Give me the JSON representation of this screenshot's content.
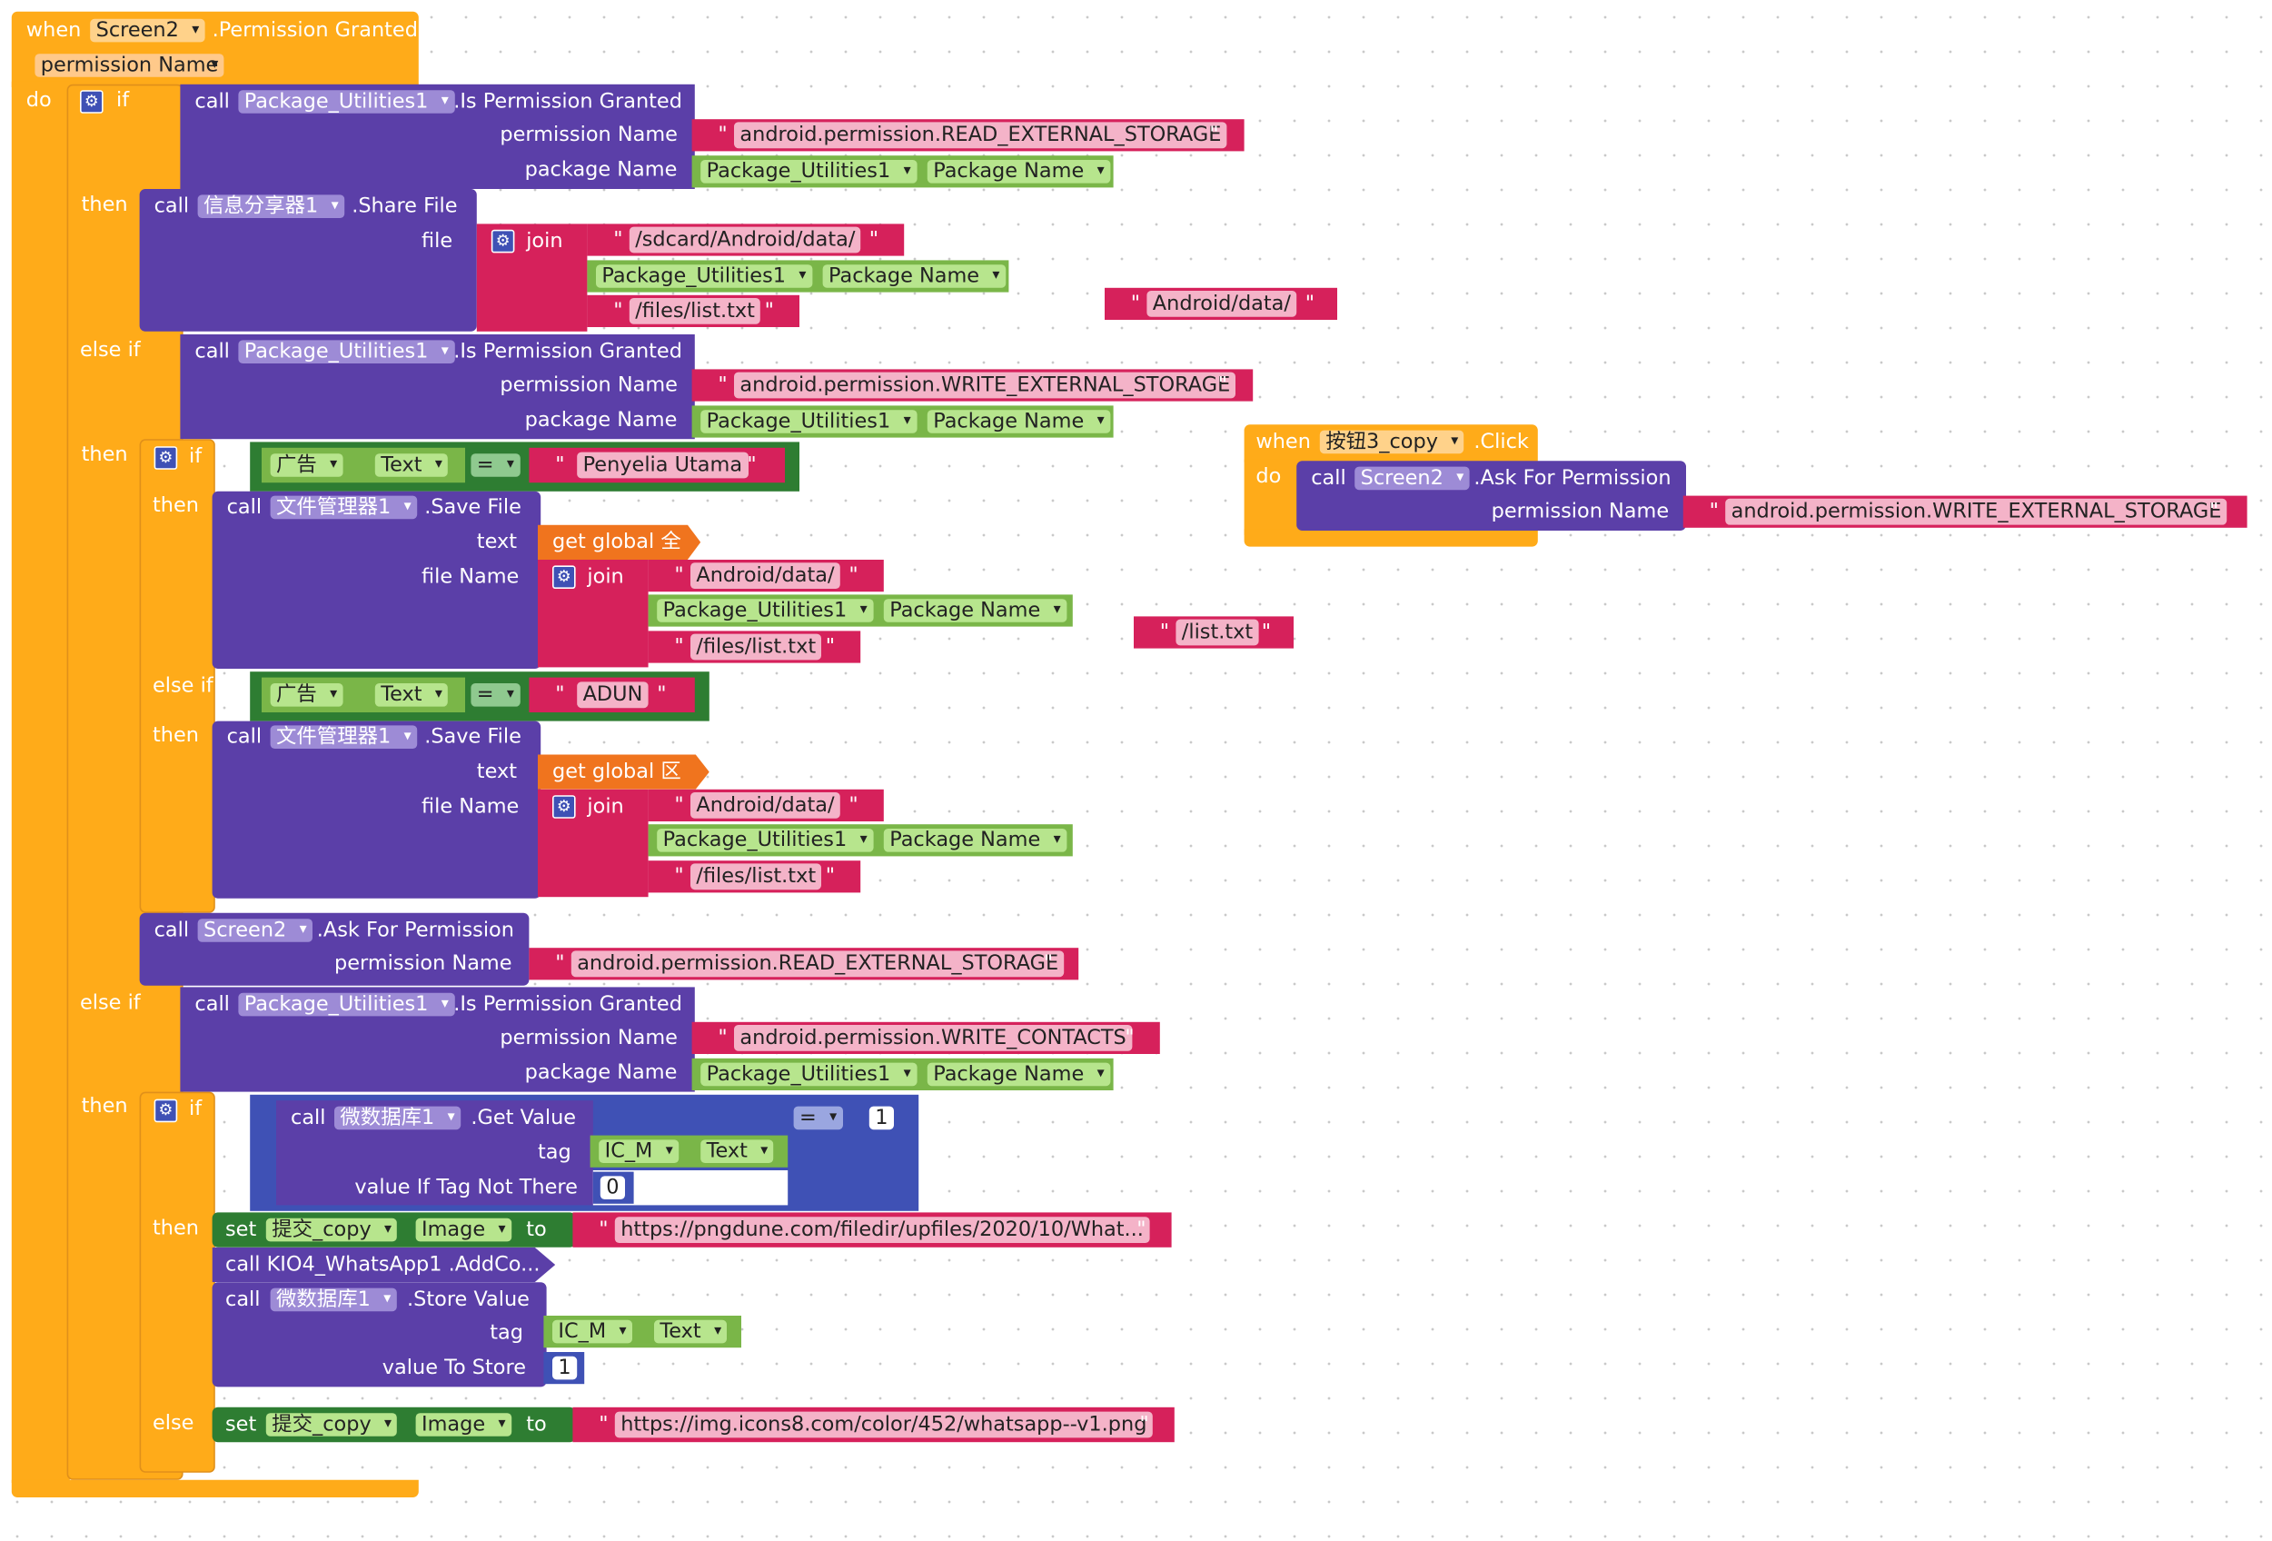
{
  "kw": {
    "when": "when",
    "do": "do",
    "if": "if",
    "then": "then",
    "else_if": "else if",
    "else": "else",
    "call": "call",
    "set": "set",
    "to": "to",
    "join": "join",
    "eq": "="
  },
  "event1": {
    "component": "Screen2",
    "event": ".Permission Granted",
    "param": "permission Name"
  },
  "event2": {
    "component": "按钮3_copy",
    "event": ".Click"
  },
  "pu": {
    "component": "Package_Utilities1",
    "method": ".Is Permission Granted",
    "arg1": "permission Name",
    "arg2": "package Name",
    "pkgname": "Package Name"
  },
  "perm": {
    "read": "android.permission.READ_EXTERNAL_STORAGE",
    "write": "android.permission.WRITE_EXTERNAL_STORAGE",
    "contacts": "android.permission.WRITE_CONTACTS"
  },
  "share": {
    "component": "信息分享器1",
    "method": ".Share File",
    "arg": "file"
  },
  "strs": {
    "sdcard": "/sdcard/Android/data/",
    "files_list": "/files/list.txt",
    "android_data": "Android/data/",
    "list_txt": "/list.txt",
    "penyelia": "Penyelia Utama",
    "adun": "ADUN"
  },
  "cond": {
    "component": "广告",
    "prop": "Text"
  },
  "save": {
    "component": "文件管理器1",
    "method": ".Save File",
    "arg1": "text",
    "arg2": "file Name"
  },
  "globals": {
    "g1": "get global 全",
    "g2": "get global 区"
  },
  "ask": {
    "component": "Screen2",
    "method": ".Ask For Permission",
    "arg": "permission Name"
  },
  "db": {
    "component": "微数据库1",
    "get": ".Get Value",
    "store": ".Store Value",
    "tag": "tag",
    "notthere": "value If Tag Not There",
    "tostore": "value To Store",
    "tagcomp": "IC_M",
    "tagprop": "Text",
    "zero": "0",
    "one": "1"
  },
  "img": {
    "component": "提交_copy",
    "prop": "Image",
    "url1": "https://pngdune.com/filedir/upfiles/2020/10/What...",
    "url2": "https://img.icons8.com/color/452/whatsapp--v1.png"
  },
  "kio": {
    "call": "call  KIO4_WhatsApp1 .AddCo..."
  },
  "colors": {
    "event": "#ffab19",
    "procedure": "#5b3fa8",
    "text": "#d6215b",
    "component": "#7ab648",
    "variable": "#f0741e",
    "math": "#3f51b5",
    "logic": "#2e7d32"
  }
}
